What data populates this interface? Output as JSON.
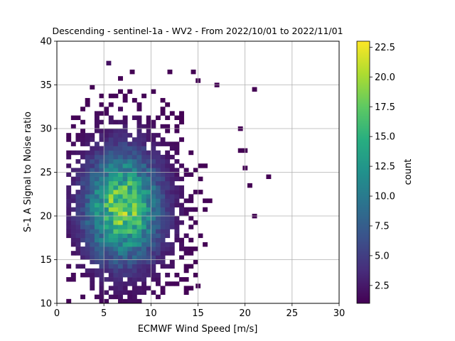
{
  "chart_data": {
    "type": "heatmap",
    "title": "Descending - sentinel-1a - WV2 - From 2022/10/01 to 2022/11/01",
    "xlabel": "ECMWF Wind Speed [m/s]",
    "ylabel": "S-1 A Signal to Noise ratio",
    "xlim": [
      0,
      30
    ],
    "ylim": [
      10,
      40
    ],
    "xticks": [
      "0",
      "5",
      "10",
      "15",
      "20",
      "25",
      "30"
    ],
    "yticks": [
      "10",
      "15",
      "20",
      "25",
      "30",
      "35",
      "40"
    ],
    "grid": true,
    "bin_width_x": 0.5,
    "bin_width_y": 0.5,
    "colormap": "viridis",
    "colorbar": {
      "label": "count",
      "range": [
        1,
        23
      ],
      "ticks": [
        "2.5",
        "5.0",
        "7.5",
        "10.0",
        "12.5",
        "15.0",
        "17.5",
        "20.0",
        "22.5"
      ]
    },
    "density_peak": {
      "x": 7.0,
      "y": 21.0,
      "count": 23
    },
    "outliers": [
      {
        "x": 5.5,
        "y": 37.5,
        "count": 2
      },
      {
        "x": 8.0,
        "y": 36.5,
        "count": 1
      },
      {
        "x": 12.0,
        "y": 36.5,
        "count": 1
      },
      {
        "x": 14.5,
        "y": 36.5,
        "count": 1
      },
      {
        "x": 15.0,
        "y": 35.5,
        "count": 1
      },
      {
        "x": 17.0,
        "y": 35.0,
        "count": 1
      },
      {
        "x": 21.0,
        "y": 34.5,
        "count": 1
      },
      {
        "x": 19.5,
        "y": 30.0,
        "count": 1
      },
      {
        "x": 19.5,
        "y": 27.5,
        "count": 1
      },
      {
        "x": 20.0,
        "y": 27.5,
        "count": 1
      },
      {
        "x": 20.0,
        "y": 25.5,
        "count": 1
      },
      {
        "x": 22.5,
        "y": 24.5,
        "count": 1
      },
      {
        "x": 20.5,
        "y": 23.5,
        "count": 1
      },
      {
        "x": 21.0,
        "y": 20.0,
        "count": 1
      },
      {
        "x": 15.0,
        "y": 12.0,
        "count": 1
      }
    ]
  }
}
